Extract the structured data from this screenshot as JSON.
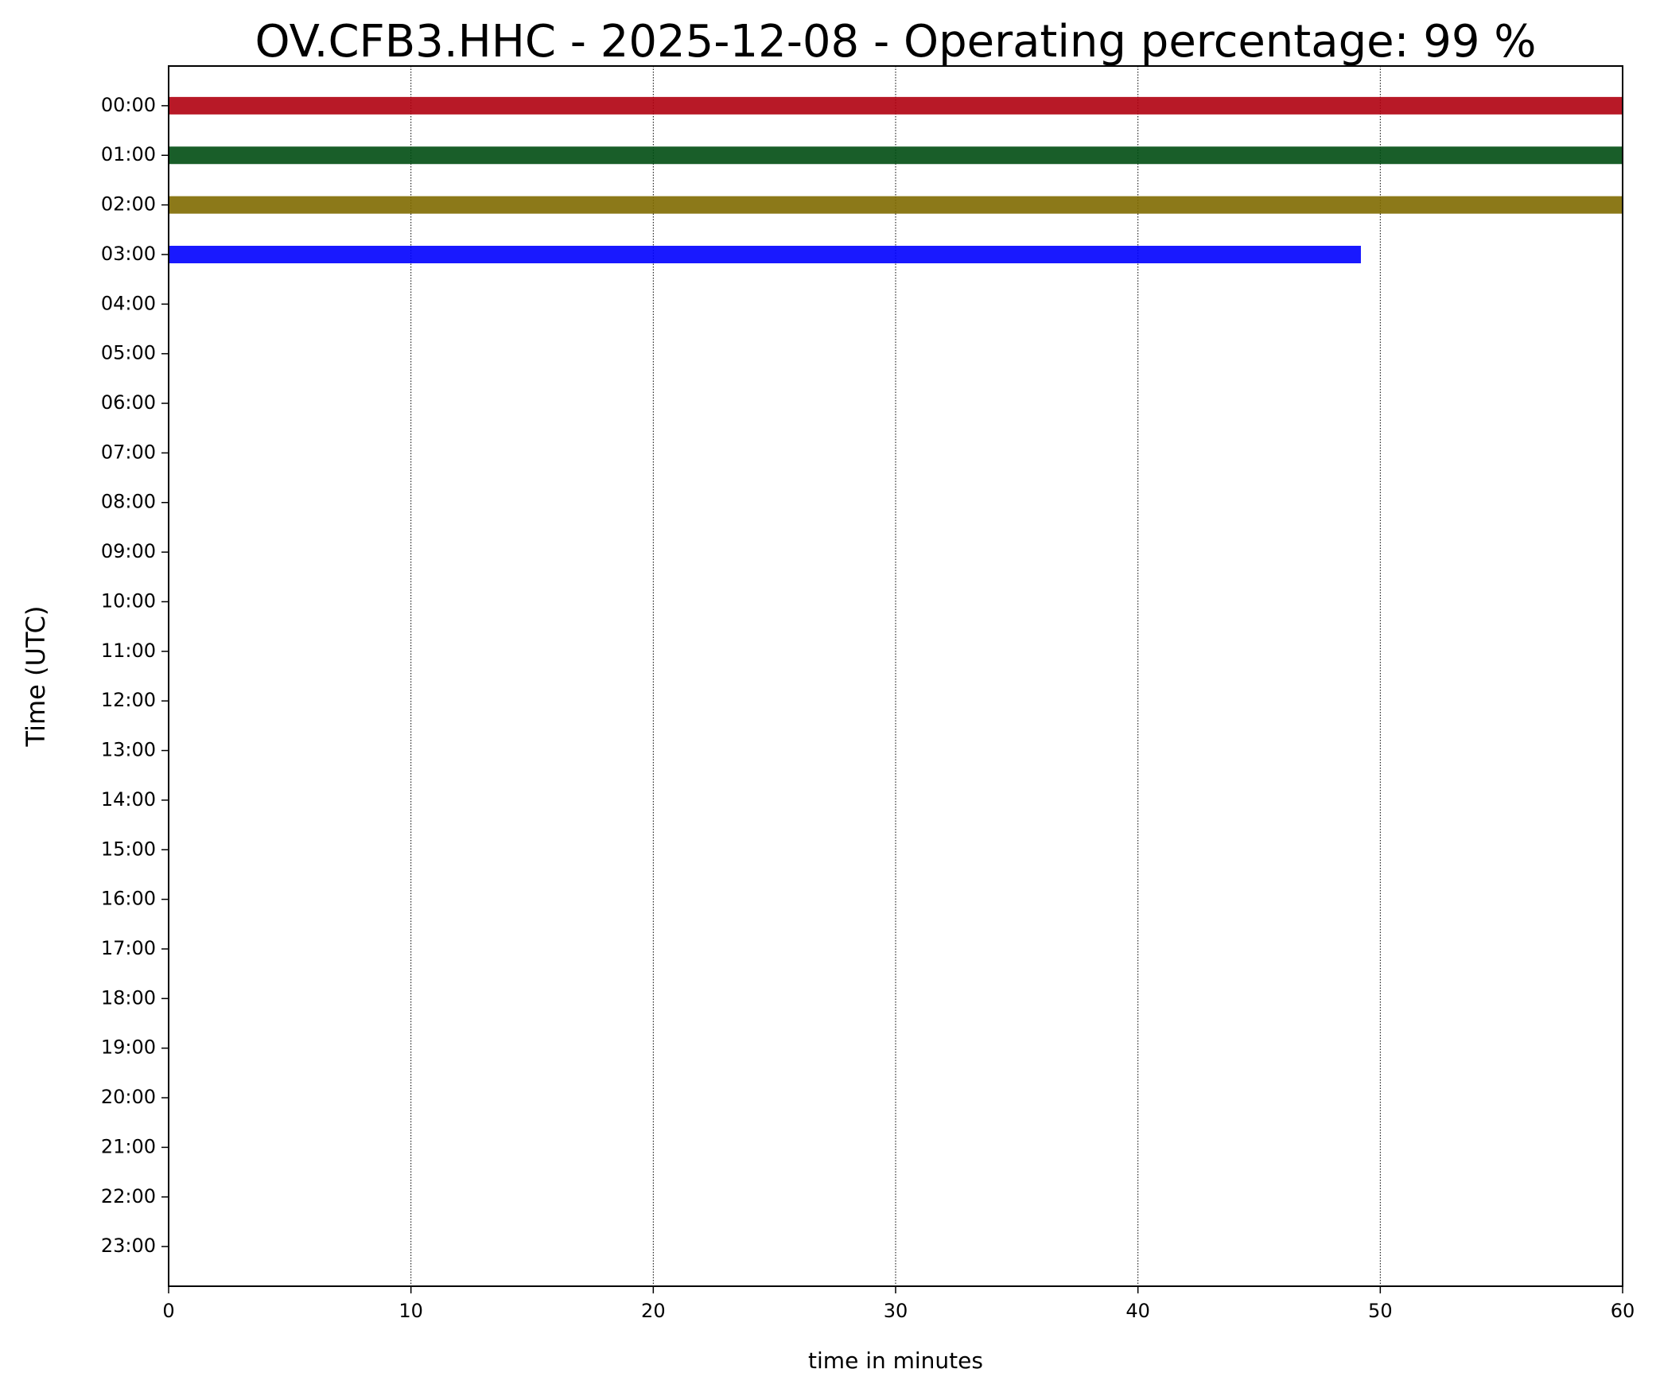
{
  "chart_data": {
    "type": "line",
    "title": "OV.CFB3.HHC - 2025-12-08 - Operating percentage: 99 %",
    "xlabel": "time in minutes",
    "ylabel": "Time (UTC)",
    "xlim": [
      0,
      60
    ],
    "xticks": [
      0,
      10,
      20,
      30,
      40,
      50,
      60
    ],
    "ylim": [
      23.8,
      -0.8
    ],
    "y_inverted": true,
    "yticks": [
      {
        "value": 0,
        "label": "00:00"
      },
      {
        "value": 1,
        "label": "01:00"
      },
      {
        "value": 2,
        "label": "02:00"
      },
      {
        "value": 3,
        "label": "03:00"
      },
      {
        "value": 4,
        "label": "04:00"
      },
      {
        "value": 5,
        "label": "05:00"
      },
      {
        "value": 6,
        "label": "06:00"
      },
      {
        "value": 7,
        "label": "07:00"
      },
      {
        "value": 8,
        "label": "08:00"
      },
      {
        "value": 9,
        "label": "09:00"
      },
      {
        "value": 10,
        "label": "10:00"
      },
      {
        "value": 11,
        "label": "11:00"
      },
      {
        "value": 12,
        "label": "12:00"
      },
      {
        "value": 13,
        "label": "13:00"
      },
      {
        "value": 14,
        "label": "14:00"
      },
      {
        "value": 15,
        "label": "15:00"
      },
      {
        "value": 16,
        "label": "16:00"
      },
      {
        "value": 17,
        "label": "17:00"
      },
      {
        "value": 18,
        "label": "18:00"
      },
      {
        "value": 19,
        "label": "19:00"
      },
      {
        "value": 20,
        "label": "20:00"
      },
      {
        "value": 21,
        "label": "21:00"
      },
      {
        "value": 22,
        "label": "22:00"
      },
      {
        "value": 23,
        "label": "23:00"
      }
    ],
    "grid": "x",
    "series": [
      {
        "color": "#b0000f",
        "x": [
          0,
          60
        ],
        "values": [
          0,
          0
        ]
      },
      {
        "color": "#004d12",
        "x": [
          0,
          60
        ],
        "values": [
          1,
          1
        ]
      },
      {
        "color": "#7f6a00",
        "x": [
          0,
          60
        ],
        "values": [
          2,
          2
        ]
      },
      {
        "color": "#0000ff",
        "x": [
          0,
          49.2
        ],
        "values": [
          3,
          3
        ]
      }
    ]
  }
}
